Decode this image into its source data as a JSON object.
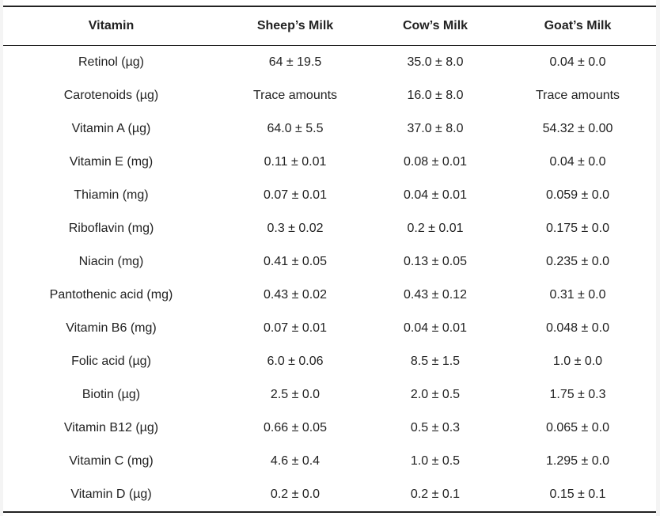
{
  "table": {
    "headers": [
      "Vitamin",
      "Sheep’s Milk",
      "Cow’s Milk",
      "Goat’s Milk"
    ],
    "rows": [
      [
        "Retinol (µg)",
        "64 ± 19.5",
        "35.0 ± 8.0",
        "0.04 ± 0.0"
      ],
      [
        "Carotenoids (µg)",
        "Trace amounts",
        "16.0 ± 8.0",
        "Trace amounts"
      ],
      [
        "Vitamin A (µg)",
        "64.0 ± 5.5",
        "37.0 ± 8.0",
        "54.32 ± 0.00"
      ],
      [
        "Vitamin E (mg)",
        "0.11 ± 0.01",
        "0.08 ± 0.01",
        "0.04 ± 0.0"
      ],
      [
        "Thiamin (mg)",
        "0.07 ± 0.01",
        "0.04 ± 0.01",
        "0.059 ± 0.0"
      ],
      [
        "Riboflavin (mg)",
        "0.3 ± 0.02",
        "0.2 ± 0.01",
        "0.175 ± 0.0"
      ],
      [
        "Niacin (mg)",
        "0.41 ± 0.05",
        "0.13 ± 0.05",
        "0.235 ± 0.0"
      ],
      [
        "Pantothenic acid (mg)",
        "0.43 ± 0.02",
        "0.43 ± 0.12",
        "0.31 ± 0.0"
      ],
      [
        "Vitamin B6 (mg)",
        "0.07 ± 0.01",
        "0.04 ± 0.01",
        "0.048 ± 0.0"
      ],
      [
        "Folic acid (µg)",
        "6.0 ± 0.06",
        "8.5 ± 1.5",
        "1.0 ± 0.0"
      ],
      [
        "Biotin (µg)",
        "2.5 ± 0.0",
        "2.0 ± 0.5",
        "1.75 ± 0.3"
      ],
      [
        "Vitamin B12 (µg)",
        "0.66 ± 0.05",
        "0.5 ± 0.3",
        "0.065 ± 0.0"
      ],
      [
        "Vitamin C (mg)",
        "4.6 ± 0.4",
        "1.0 ± 0.5",
        "1.295 ± 0.0"
      ],
      [
        "Vitamin D (µg)",
        "0.2 ± 0.0",
        "0.2 ± 0.1",
        "0.15 ± 0.1"
      ]
    ]
  },
  "colors": {
    "text": "#222222",
    "background": "#f4f4f4",
    "panel": "#ffffff",
    "rule": "#222222"
  }
}
